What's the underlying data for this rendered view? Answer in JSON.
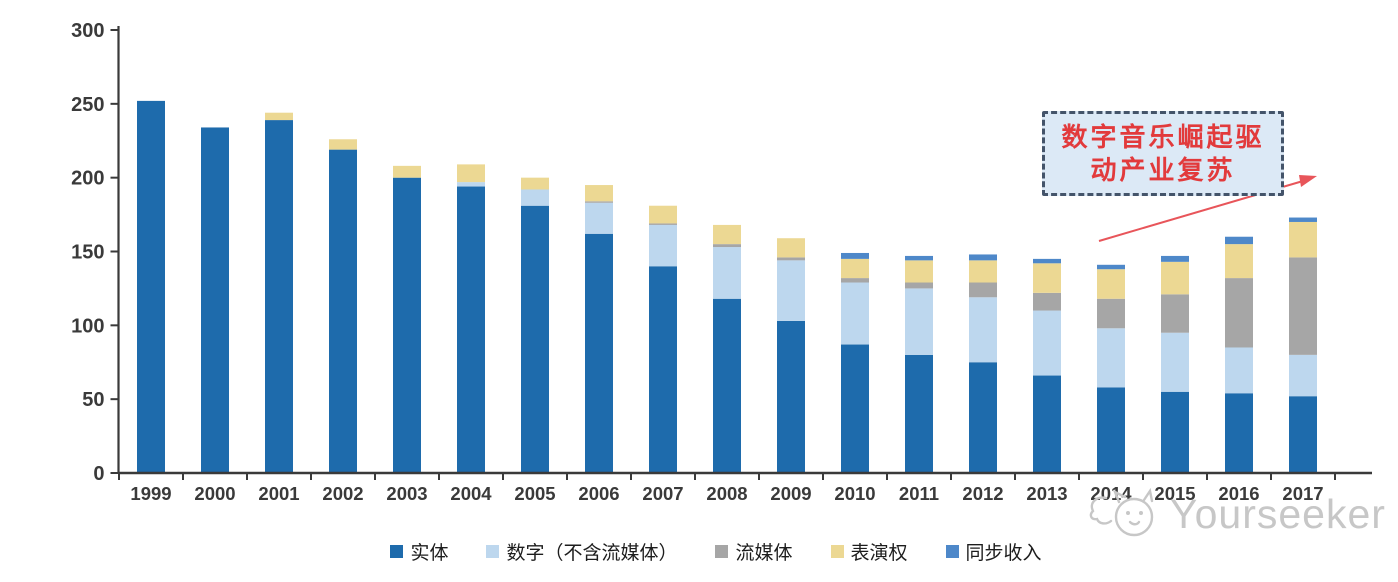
{
  "chart_data": {
    "type": "bar",
    "stacked": true,
    "title": "",
    "xlabel": "",
    "ylabel": "",
    "categories": [
      "1999",
      "2000",
      "2001",
      "2002",
      "2003",
      "2004",
      "2005",
      "2006",
      "2007",
      "2008",
      "2009",
      "2010",
      "2011",
      "2012",
      "2013",
      "2014",
      "2015",
      "2016",
      "2017"
    ],
    "series": [
      {
        "name": "实体",
        "color": "#1e6bac",
        "values": [
          252,
          234,
          239,
          219,
          200,
          194,
          181,
          162,
          140,
          118,
          103,
          87,
          80,
          75,
          66,
          58,
          55,
          54,
          52
        ]
      },
      {
        "name": "数字（不含流媒体）",
        "color": "#bdd7ee",
        "values": [
          0,
          0,
          0,
          0,
          0,
          3,
          11,
          21,
          28,
          35,
          41,
          42,
          45,
          44,
          44,
          40,
          40,
          31,
          28
        ]
      },
      {
        "name": "流媒体",
        "color": "#a6a6a6",
        "values": [
          0,
          0,
          0,
          0,
          0,
          0,
          0,
          1,
          1,
          2,
          2,
          3,
          4,
          10,
          12,
          20,
          26,
          47,
          66
        ]
      },
      {
        "name": "表演权",
        "color": "#ecd893",
        "values": [
          0,
          0,
          5,
          7,
          8,
          12,
          8,
          11,
          12,
          13,
          13,
          13,
          15,
          15,
          20,
          20,
          22,
          23,
          24
        ]
      },
      {
        "name": "同步收入",
        "color": "#4e88c9",
        "values": [
          0,
          0,
          0,
          0,
          0,
          0,
          0,
          0,
          0,
          0,
          0,
          4,
          3,
          4,
          3,
          3,
          4,
          5,
          3
        ]
      }
    ],
    "ylim": [
      0,
      300
    ],
    "ytick_step": 50,
    "y_tick_labels": [
      "0",
      "50",
      "100",
      "150",
      "200",
      "250",
      "300"
    ],
    "grid": false,
    "legend_position": "bottom",
    "axis_color": "#3a3a3a",
    "tick_label_color": "#3a3a3a"
  },
  "annotation": {
    "line1": "数字音乐崛起驱",
    "line2": "动产业复苏",
    "text_color": "#e23a3c",
    "box_fill": "#dce9f6",
    "border_color": "#44546a",
    "arrow_color": "#e8555a"
  },
  "watermark": {
    "text": "Yourseeker",
    "logo_icon": "yourseeker-cat-logo",
    "color": "#c7c7c7"
  }
}
